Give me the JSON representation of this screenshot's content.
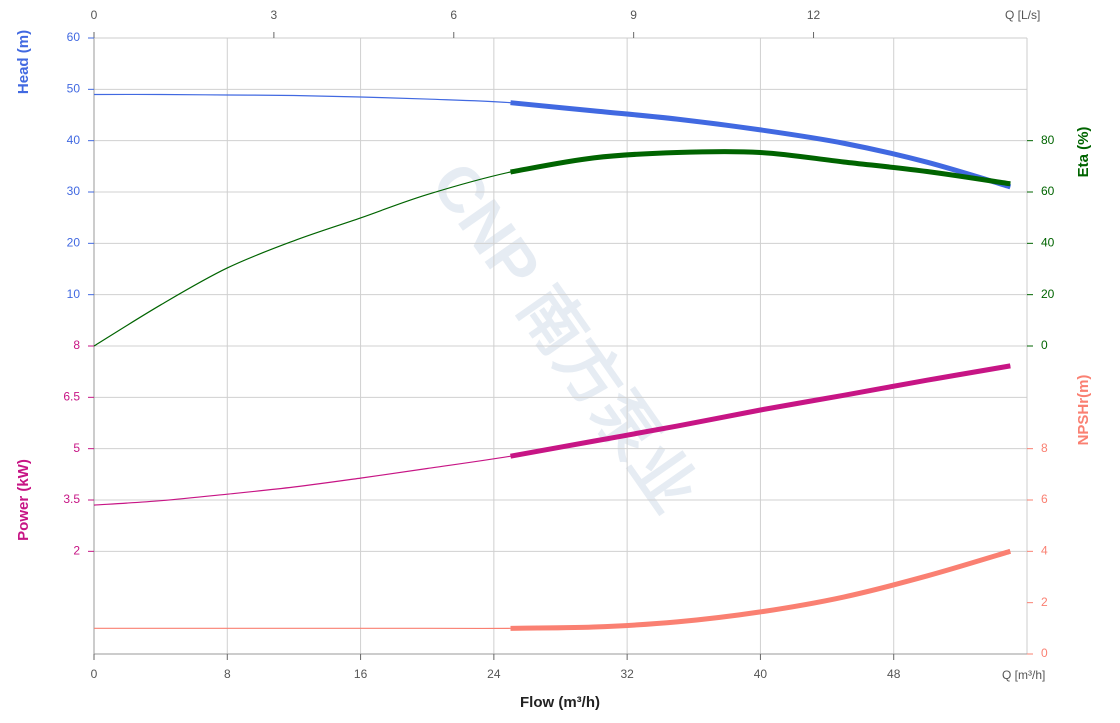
{
  "chart_data": {
    "type": "line",
    "watermark": "CNP 南方泵业",
    "x_label": "Flow (m³/h)",
    "x_unit_label": "Q [m³/h]",
    "x2_unit_label": "Q [L/s]",
    "xlim": [
      0,
      56
    ],
    "xticks": [
      0,
      8,
      16,
      24,
      32,
      40,
      48
    ],
    "x2lim": [
      0,
      15.56
    ],
    "x2ticks": [
      0,
      3,
      6,
      9,
      12
    ],
    "grid": true,
    "thick_from": 25,
    "x": [
      0,
      4,
      8,
      12,
      16,
      20,
      25,
      30,
      35,
      40,
      45,
      50,
      55
    ],
    "axes": {
      "head": {
        "label": "Head (m)",
        "color": "#4169e1",
        "side": "left",
        "ylim": [
          0,
          60
        ],
        "yticks": [
          10,
          20,
          30,
          40,
          50,
          60
        ]
      },
      "eta": {
        "label": "Eta (%)",
        "color": "#006400",
        "side": "right",
        "ylim": [
          0,
          120
        ],
        "yticks": [
          0,
          20,
          40,
          60,
          80
        ]
      },
      "power": {
        "label": "Power (kW)",
        "color": "#c71585",
        "side": "left",
        "ylim": [
          -1,
          8
        ],
        "yticks": [
          2,
          3.5,
          5,
          6.5,
          8
        ]
      },
      "npsh": {
        "label": "NPSHr(m)",
        "color": "#fa8072",
        "side": "right",
        "ylim": [
          0,
          12
        ],
        "yticks": [
          0,
          2,
          4,
          6,
          8
        ]
      }
    },
    "series": [
      {
        "axis": "head",
        "color": "#4169e1",
        "values": [
          49,
          49,
          48.9,
          48.8,
          48.5,
          48.1,
          47.4,
          45.8,
          44.2,
          42.1,
          39.5,
          35.8,
          31.0
        ]
      },
      {
        "axis": "eta",
        "color": "#006400",
        "values": [
          0,
          16,
          30.4,
          41,
          49.9,
          59,
          67.8,
          73.3,
          75.4,
          75.4,
          71.7,
          68,
          63.2
        ]
      },
      {
        "axis": "power",
        "color": "#c71585",
        "values": [
          3.35,
          3.48,
          3.67,
          3.88,
          4.14,
          4.42,
          4.78,
          5.22,
          5.66,
          6.13,
          6.56,
          7.0,
          7.42
        ]
      },
      {
        "axis": "npsh",
        "color": "#fa8072",
        "values": [
          1.0,
          1.0,
          1.0,
          1.0,
          1.0,
          1.0,
          1.0,
          1.05,
          1.25,
          1.64,
          2.22,
          3.04,
          4.0
        ]
      }
    ]
  }
}
